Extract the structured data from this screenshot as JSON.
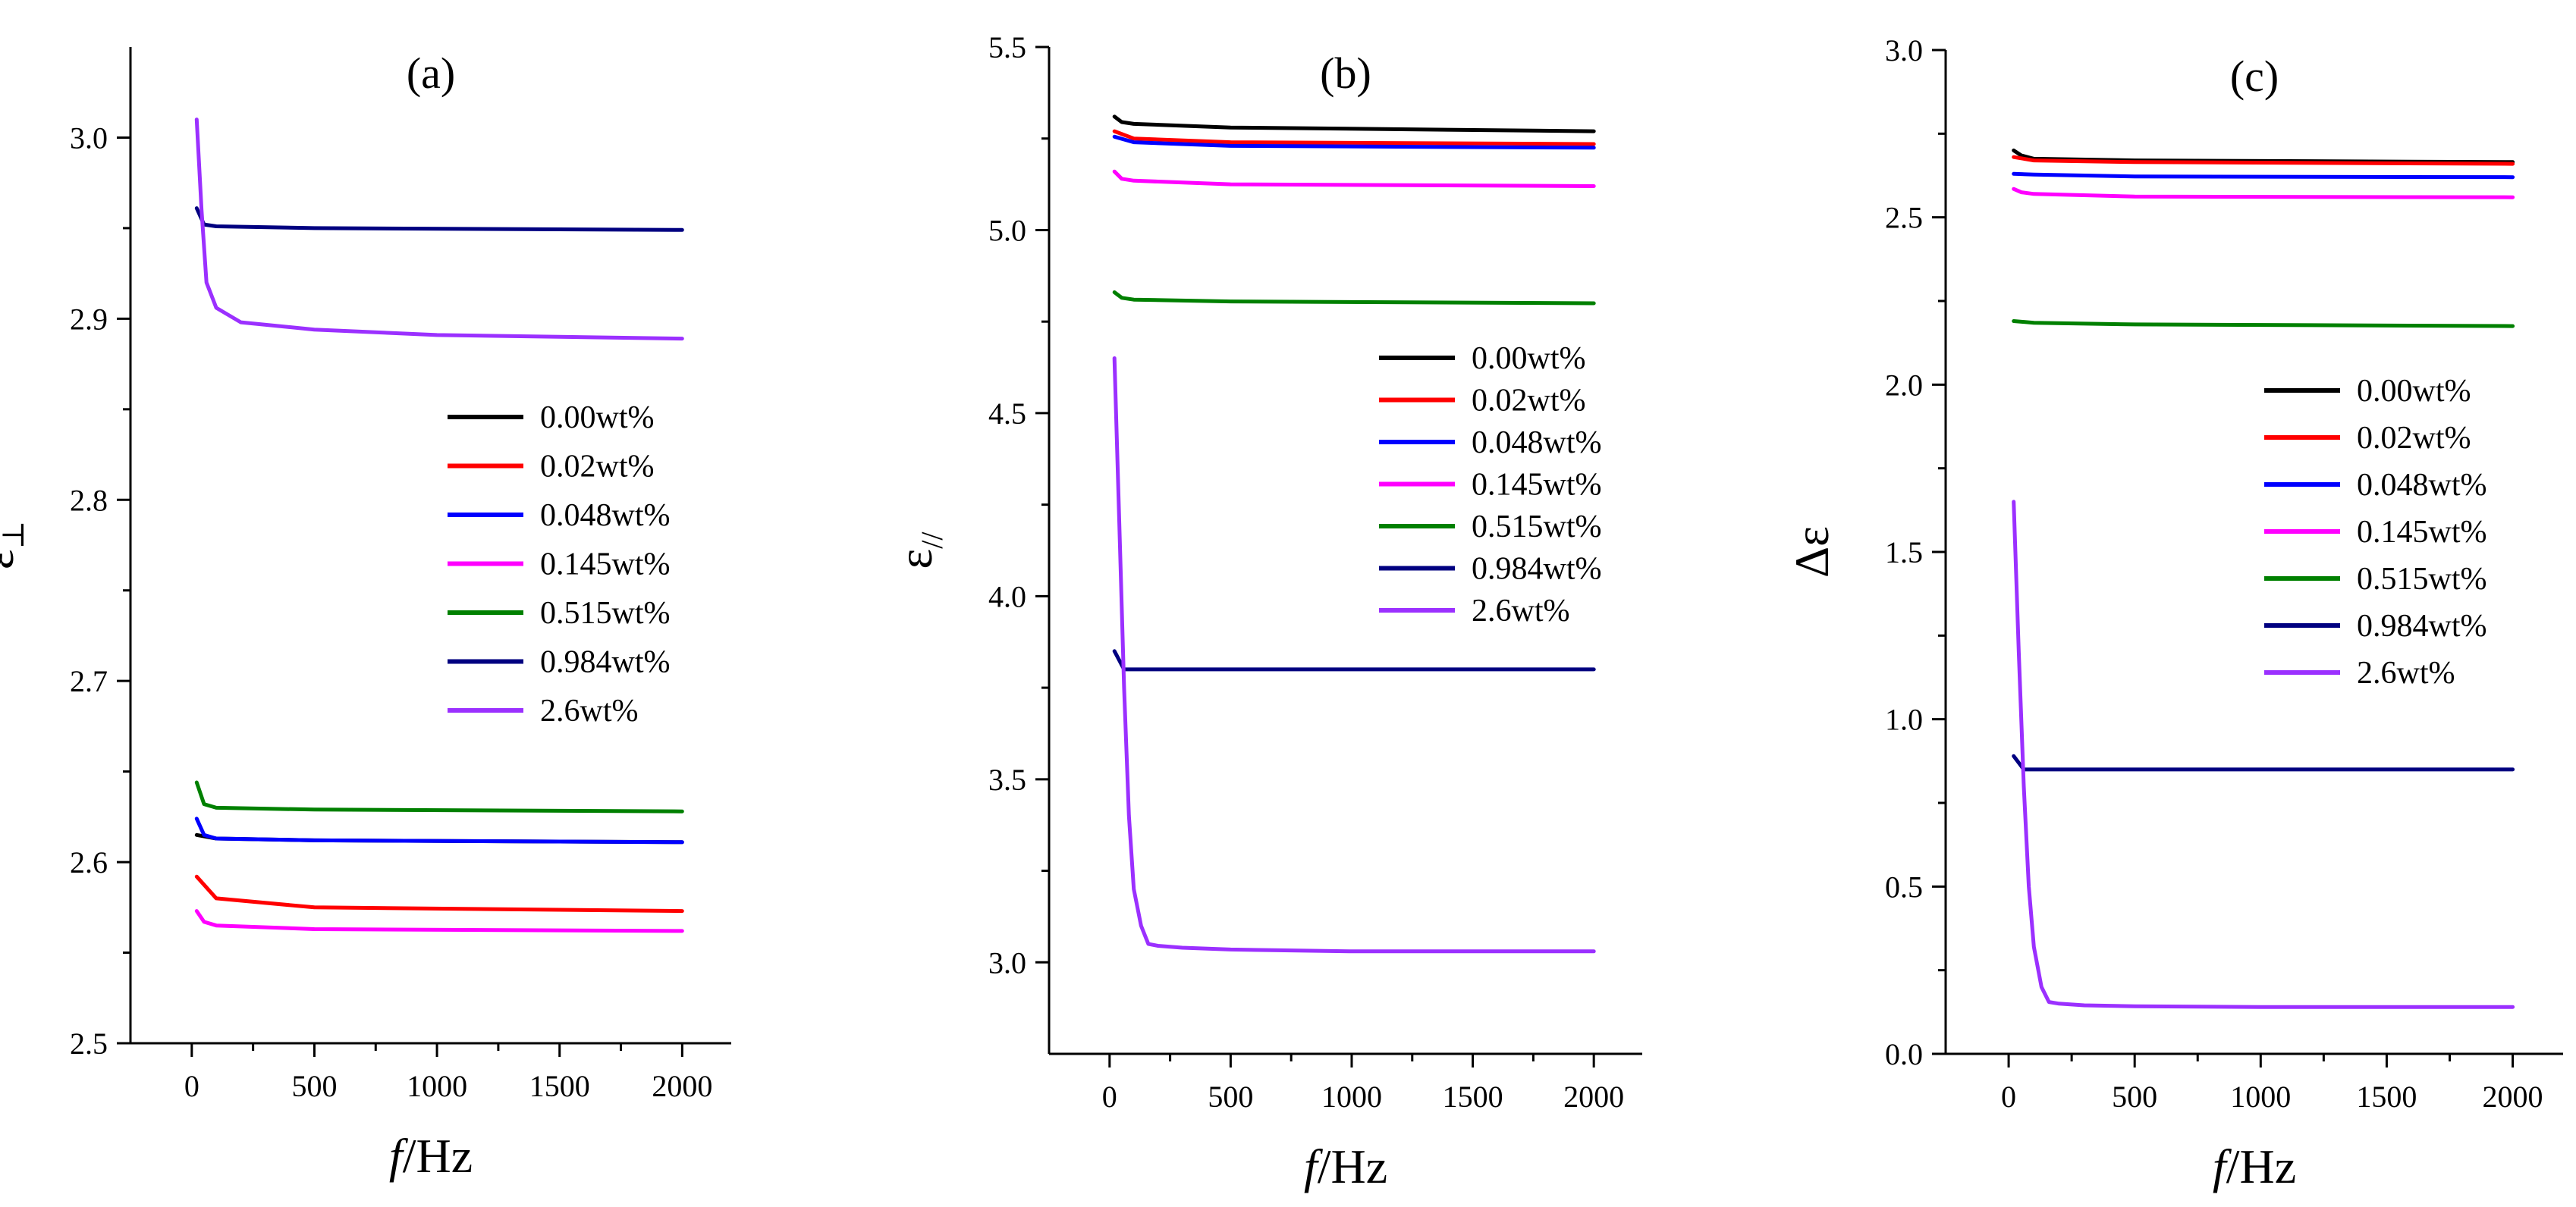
{
  "chart_data": [
    {
      "type": "line",
      "title": "(a)",
      "xlabel_italic": "f",
      "xlabel_rest": "/Hz",
      "ylabel_main": "ε",
      "ylabel_sub": "⊥",
      "xlim": [
        -250,
        2200
      ],
      "ylim": [
        2.5,
        3.05
      ],
      "xticks": [
        0,
        500,
        1000,
        1500,
        2000
      ],
      "xtick_labels": [
        "0",
        "500",
        "1000",
        "1500",
        "2000"
      ],
      "yticks": [
        2.5,
        2.6,
        2.7,
        2.8,
        2.9,
        3.0
      ],
      "ytick_labels": [
        "2.5",
        "2.6",
        "2.7",
        "2.8",
        "2.9",
        "3.0"
      ],
      "series": [
        {
          "name": "0.00wt%",
          "color": "#000000",
          "x": [
            20,
            100,
            500,
            2000
          ],
          "y": [
            2.615,
            2.613,
            2.612,
            2.611
          ]
        },
        {
          "name": "0.02wt%",
          "color": "#ff0000",
          "x": [
            20,
            100,
            500,
            2000
          ],
          "y": [
            2.592,
            2.58,
            2.575,
            2.573
          ]
        },
        {
          "name": "0.048wt%",
          "color": "#0000ff",
          "x": [
            20,
            50,
            100,
            500,
            2000
          ],
          "y": [
            2.624,
            2.615,
            2.613,
            2.612,
            2.611
          ]
        },
        {
          "name": "0.145wt%",
          "color": "#ff00ff",
          "x": [
            20,
            50,
            100,
            500,
            2000
          ],
          "y": [
            2.573,
            2.567,
            2.565,
            2.563,
            2.562
          ]
        },
        {
          "name": "0.515wt%",
          "color": "#008000",
          "x": [
            20,
            50,
            100,
            500,
            2000
          ],
          "y": [
            2.644,
            2.632,
            2.63,
            2.629,
            2.628
          ]
        },
        {
          "name": "0.984wt%",
          "color": "#000080",
          "x": [
            20,
            50,
            100,
            500,
            2000
          ],
          "y": [
            2.961,
            2.952,
            2.951,
            2.95,
            2.949
          ]
        },
        {
          "name": "2.6wt%",
          "color": "#9b30ff",
          "x": [
            20,
            40,
            60,
            100,
            200,
            500,
            1000,
            2000
          ],
          "y": [
            3.01,
            2.96,
            2.92,
            2.906,
            2.898,
            2.894,
            2.891,
            2.889
          ]
        }
      ],
      "legend": [
        "0.00wt%",
        "0.02wt%",
        "0.048wt%",
        "0.145wt%",
        "0.515wt%",
        "0.984wt%",
        "2.6wt%"
      ]
    },
    {
      "type": "line",
      "title": "(b)",
      "xlabel_italic": "f",
      "xlabel_rest": "/Hz",
      "ylabel_main": "ε",
      "ylabel_sub": "//",
      "xlim": [
        -250,
        2200
      ],
      "ylim": [
        2.75,
        5.5
      ],
      "xticks": [
        0,
        500,
        1000,
        1500,
        2000
      ],
      "xtick_labels": [
        "0",
        "500",
        "1000",
        "1500",
        "2000"
      ],
      "yticks": [
        3.0,
        3.5,
        4.0,
        4.5,
        5.0,
        5.5
      ],
      "ytick_labels": [
        "3.0",
        "3.5",
        "4.0",
        "4.5",
        "5.0",
        "5.5"
      ],
      "series": [
        {
          "name": "0.00wt%",
          "color": "#000000",
          "x": [
            20,
            50,
            100,
            500,
            2000
          ],
          "y": [
            5.31,
            5.295,
            5.29,
            5.28,
            5.27
          ]
        },
        {
          "name": "0.02wt%",
          "color": "#ff0000",
          "x": [
            20,
            100,
            500,
            2000
          ],
          "y": [
            5.27,
            5.25,
            5.24,
            5.235
          ]
        },
        {
          "name": "0.048wt%",
          "color": "#0000ff",
          "x": [
            20,
            100,
            500,
            2000
          ],
          "y": [
            5.255,
            5.24,
            5.23,
            5.225
          ]
        },
        {
          "name": "0.145wt%",
          "color": "#ff00ff",
          "x": [
            20,
            50,
            100,
            500,
            2000
          ],
          "y": [
            5.16,
            5.14,
            5.135,
            5.125,
            5.12
          ]
        },
        {
          "name": "0.515wt%",
          "color": "#008000",
          "x": [
            20,
            50,
            100,
            500,
            2000
          ],
          "y": [
            4.83,
            4.815,
            4.81,
            4.805,
            4.8
          ]
        },
        {
          "name": "0.984wt%",
          "color": "#000080",
          "x": [
            20,
            60,
            100,
            500,
            2000
          ],
          "y": [
            3.85,
            3.8,
            3.8,
            3.8,
            3.8
          ]
        },
        {
          "name": "2.6wt%",
          "color": "#9b30ff",
          "x": [
            20,
            40,
            60,
            80,
            100,
            130,
            160,
            200,
            300,
            500,
            1000,
            2000
          ],
          "y": [
            4.65,
            4.2,
            3.75,
            3.4,
            3.2,
            3.1,
            3.05,
            3.045,
            3.04,
            3.035,
            3.03,
            3.03
          ]
        }
      ],
      "legend": [
        "0.00wt%",
        "0.02wt%",
        "0.048wt%",
        "0.145wt%",
        "0.515wt%",
        "0.984wt%",
        "2.6wt%"
      ]
    },
    {
      "type": "line",
      "title": "(c)",
      "xlabel_italic": "f",
      "xlabel_rest": "/Hz",
      "ylabel_main": "Δε",
      "ylabel_sub": "",
      "xlim": [
        -250,
        2200
      ],
      "ylim": [
        0.0,
        3.0
      ],
      "xticks": [
        0,
        500,
        1000,
        1500,
        2000
      ],
      "xtick_labels": [
        "0",
        "500",
        "1000",
        "1500",
        "2000"
      ],
      "yticks": [
        0.0,
        0.5,
        1.0,
        1.5,
        2.0,
        2.5,
        3.0
      ],
      "ytick_labels": [
        "0.0",
        "0.5",
        "1.0",
        "1.5",
        "2.0",
        "2.5",
        "3.0"
      ],
      "series": [
        {
          "name": "0.00wt%",
          "color": "#000000",
          "x": [
            20,
            50,
            100,
            500,
            2000
          ],
          "y": [
            2.7,
            2.685,
            2.675,
            2.67,
            2.665
          ]
        },
        {
          "name": "0.02wt%",
          "color": "#ff0000",
          "x": [
            20,
            100,
            500,
            2000
          ],
          "y": [
            2.68,
            2.67,
            2.665,
            2.66
          ]
        },
        {
          "name": "0.048wt%",
          "color": "#0000ff",
          "x": [
            20,
            100,
            500,
            2000
          ],
          "y": [
            2.63,
            2.628,
            2.622,
            2.62
          ]
        },
        {
          "name": "0.145wt%",
          "color": "#ff00ff",
          "x": [
            20,
            50,
            100,
            500,
            2000
          ],
          "y": [
            2.585,
            2.575,
            2.57,
            2.562,
            2.56
          ]
        },
        {
          "name": "0.515wt%",
          "color": "#008000",
          "x": [
            20,
            100,
            500,
            2000
          ],
          "y": [
            2.19,
            2.185,
            2.18,
            2.175
          ]
        },
        {
          "name": "0.984wt%",
          "color": "#000080",
          "x": [
            20,
            60,
            100,
            500,
            2000
          ],
          "y": [
            0.89,
            0.85,
            0.85,
            0.85,
            0.85
          ]
        },
        {
          "name": "2.6wt%",
          "color": "#9b30ff",
          "x": [
            20,
            40,
            60,
            80,
            100,
            130,
            160,
            200,
            300,
            500,
            1000,
            2000
          ],
          "y": [
            1.65,
            1.2,
            0.8,
            0.5,
            0.32,
            0.2,
            0.155,
            0.15,
            0.145,
            0.142,
            0.14,
            0.14
          ]
        }
      ],
      "legend": [
        "0.00wt%",
        "0.02wt%",
        "0.048wt%",
        "0.145wt%",
        "0.515wt%",
        "0.984wt%",
        "2.6wt%"
      ]
    }
  ]
}
